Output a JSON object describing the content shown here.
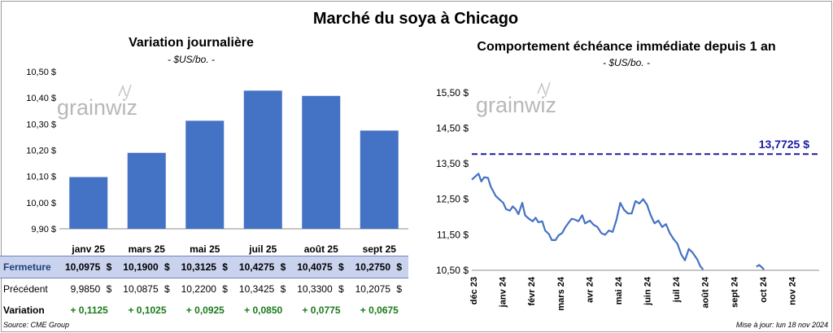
{
  "header": {
    "title": "Marché du soya à Chicago"
  },
  "left_chart": {
    "title": "Variation journalière",
    "unit": "- $US/bo. -",
    "watermark": "grainwiz"
  },
  "right_chart": {
    "title": "Comportement échéance immédiate depuis 1 an",
    "unit": "- $US/bo. -",
    "watermark": "grainwiz",
    "reference_label": "13,7725 $"
  },
  "table": {
    "rows": [
      {
        "label": "Fermeture",
        "values": [
          "10,0975",
          "10,1900",
          "10,3125",
          "10,4275",
          "10,4075",
          "10,2750"
        ],
        "currency": "$"
      },
      {
        "label": "Précédent",
        "values": [
          "9,9850",
          "10,0875",
          "10,2200",
          "10,3425",
          "10,3300",
          "10,2075"
        ],
        "currency": "$"
      },
      {
        "label": "Variation",
        "values": [
          "+ 0,1125",
          "+ 0,1025",
          "+ 0,0925",
          "+ 0,0850",
          "+ 0,0775",
          "+ 0,0675"
        ]
      }
    ]
  },
  "footer": {
    "source": "Source: CME Group",
    "updated": "Mise à jour: lun 18 nov 2024"
  },
  "chart_data": [
    {
      "type": "bar",
      "title": "Variation journalière",
      "ylabel": "- $US/bo. -",
      "categories": [
        "janv 25",
        "mars 25",
        "mai 25",
        "juil 25",
        "août 25",
        "sept 25"
      ],
      "values": [
        10.0975,
        10.19,
        10.3125,
        10.4275,
        10.4075,
        10.275
      ],
      "ylim": [
        9.9,
        10.5
      ],
      "yticks": [
        9.9,
        10.0,
        10.1,
        10.2,
        10.3,
        10.4,
        10.5
      ],
      "ytick_labels": [
        "9,90 $",
        "10,00 $",
        "10,10 $",
        "10,20 $",
        "10,30 $",
        "10,40 $",
        "10,50 $"
      ],
      "bar_color": "#4472c4",
      "grid": false
    },
    {
      "type": "line",
      "title": "Comportement échéance immédiate depuis 1 an",
      "ylabel": "- $US/bo. -",
      "xlim": [
        "2023-12-01",
        "2024-11-30"
      ],
      "ylim": [
        10.5,
        16.0
      ],
      "yticks": [
        10.5,
        11.5,
        12.5,
        13.5,
        14.5,
        15.5
      ],
      "ytick_labels": [
        "10,50 $",
        "11,50 $",
        "12,50 $",
        "13,50 $",
        "14,50 $",
        "15,50 $"
      ],
      "xtick_labels": [
        "déc 23",
        "janv 24",
        "févr 24",
        "mars 24",
        "avr 24",
        "mai 24",
        "juin 24",
        "juil 24",
        "août 24",
        "sept 24",
        "oct 24",
        "nov 24"
      ],
      "reference_line": {
        "value": 13.7725,
        "color": "#1a1aa6",
        "style": "dashed"
      },
      "line_color": "#4472c4",
      "grid": false,
      "series": [
        {
          "segments": [
            [
              [
                "2023-12-01",
                13.05
              ],
              [
                "2023-12-05",
                13.15
              ],
              [
                "2023-12-08",
                13.22
              ],
              [
                "2023-12-11",
                13.0
              ],
              [
                "2023-12-14",
                13.12
              ],
              [
                "2023-12-18",
                13.1
              ],
              [
                "2023-12-21",
                12.85
              ],
              [
                "2023-12-26",
                12.6
              ],
              [
                "2023-12-29",
                12.52
              ],
              [
                "2024-01-03",
                12.4
              ],
              [
                "2024-01-06",
                12.22
              ],
              [
                "2024-01-10",
                12.18
              ],
              [
                "2024-01-13",
                12.3
              ],
              [
                "2024-01-16",
                12.22
              ],
              [
                "2024-01-19",
                12.08
              ],
              [
                "2024-01-23",
                12.4
              ],
              [
                "2024-01-26",
                12.05
              ],
              [
                "2024-01-30",
                11.95
              ],
              [
                "2024-02-03",
                11.88
              ],
              [
                "2024-02-06",
                11.98
              ],
              [
                "2024-02-09",
                11.85
              ],
              [
                "2024-02-13",
                11.88
              ],
              [
                "2024-02-16",
                11.62
              ],
              [
                "2024-02-20",
                11.52
              ],
              [
                "2024-02-23",
                11.35
              ],
              [
                "2024-02-27",
                11.35
              ],
              [
                "2024-03-01",
                11.48
              ],
              [
                "2024-03-05",
                11.55
              ],
              [
                "2024-03-08",
                11.7
              ],
              [
                "2024-03-12",
                11.85
              ],
              [
                "2024-03-15",
                11.95
              ],
              [
                "2024-03-19",
                11.92
              ],
              [
                "2024-03-22",
                11.88
              ],
              [
                "2024-03-26",
                12.05
              ],
              [
                "2024-03-29",
                11.82
              ],
              [
                "2024-04-03",
                11.9
              ],
              [
                "2024-04-07",
                11.78
              ],
              [
                "2024-04-11",
                11.72
              ],
              [
                "2024-04-15",
                11.55
              ],
              [
                "2024-04-19",
                11.5
              ],
              [
                "2024-04-23",
                11.62
              ],
              [
                "2024-04-27",
                11.58
              ],
              [
                "2024-05-01",
                11.92
              ],
              [
                "2024-05-05",
                12.4
              ],
              [
                "2024-05-09",
                12.2
              ],
              [
                "2024-05-13",
                12.1
              ],
              [
                "2024-05-17",
                12.1
              ],
              [
                "2024-05-21",
                12.45
              ],
              [
                "2024-05-25",
                12.38
              ],
              [
                "2024-05-29",
                12.5
              ],
              [
                "2024-06-02",
                12.35
              ],
              [
                "2024-06-06",
                12.05
              ],
              [
                "2024-06-10",
                11.82
              ],
              [
                "2024-06-14",
                11.9
              ],
              [
                "2024-06-18",
                11.72
              ],
              [
                "2024-06-22",
                11.8
              ],
              [
                "2024-06-26",
                11.55
              ],
              [
                "2024-06-30",
                11.38
              ],
              [
                "2024-07-04",
                11.25
              ],
              [
                "2024-07-08",
                10.95
              ],
              [
                "2024-07-12",
                10.78
              ],
              [
                "2024-07-16",
                11.1
              ],
              [
                "2024-07-20",
                11.0
              ],
              [
                "2024-07-25",
                10.8
              ],
              [
                "2024-07-28",
                10.62
              ],
              [
                "2024-07-31",
                10.52
              ]
            ],
            [
              [
                "2024-09-25",
                10.6
              ],
              [
                "2024-09-28",
                10.65
              ],
              [
                "2024-10-01",
                10.58
              ],
              [
                "2024-10-03",
                10.52
              ]
            ]
          ]
        }
      ]
    }
  ]
}
